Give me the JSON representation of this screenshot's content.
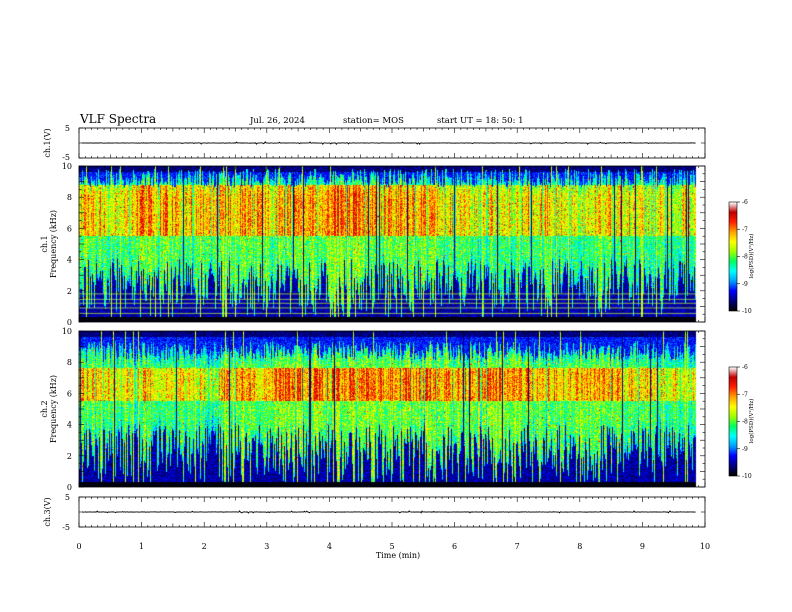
{
  "header": {
    "title": "VLF Spectra",
    "date": "Jul. 26, 2024",
    "station": "station= MOS",
    "start": "start UT =  18: 50: 1"
  },
  "chart_data": {
    "type": "heatmap",
    "xlabel": "Time (min)",
    "xlim": [
      0,
      10
    ],
    "xticks": [
      "0",
      "1",
      "2",
      "3",
      "4",
      "5",
      "6",
      "7",
      "8",
      "9",
      "10"
    ],
    "data_end_min": 9.85,
    "panels": [
      {
        "kind": "waveform",
        "ylabel": "ch.1(V)",
        "ylim": [
          -5,
          5
        ],
        "yticks": [
          "5",
          "-5"
        ],
        "baseline_v": 0,
        "description_values": {
          "amplitude_v": 0.1
        }
      },
      {
        "kind": "spectrogram",
        "ylabel_line1": "ch.1",
        "ylabel_line2": "Frequency (kHz)",
        "ylim_khz": [
          0,
          10
        ],
        "yticks": [
          "0",
          "2",
          "4",
          "6",
          "8",
          "10"
        ],
        "emission_band_khz": [
          4,
          9
        ],
        "peak_band_khz": [
          5.5,
          8.8
        ],
        "narrowband_lines_khz": [
          0.55,
          0.9,
          1.2,
          1.45,
          1.8
        ],
        "colorbar": {
          "label": "log(PSD)(V²/Hz)",
          "range": [
            -10,
            -6
          ],
          "ticks": [
            "-6",
            "-7",
            "-8",
            "-9",
            "-10"
          ]
        }
      },
      {
        "kind": "spectrogram",
        "ylabel_line1": "ch.2",
        "ylabel_line2": "Frequency (kHz)",
        "ylim_khz": [
          0,
          10
        ],
        "yticks": [
          "0",
          "2",
          "4",
          "6",
          "8",
          "10"
        ],
        "emission_band_khz": [
          4,
          8.5
        ],
        "peak_band_khz": [
          5.5,
          7.6
        ],
        "narrowband_lines_khz": [],
        "colorbar": {
          "label": "log(PSD)(V²/Hz)",
          "range": [
            -10,
            -6
          ],
          "ticks": [
            "-6",
            "-7",
            "-8",
            "-9",
            "-10"
          ]
        }
      },
      {
        "kind": "waveform",
        "ylabel": "ch.3(V)",
        "ylim": [
          -5,
          5
        ],
        "yticks": [
          "5",
          "-5"
        ],
        "baseline_v": 0,
        "description_values": {
          "amplitude_v": 0.1
        }
      }
    ]
  },
  "colors": {
    "colormap": [
      "#000000",
      "#00007f",
      "#0000ff",
      "#00a0ff",
      "#00ffff",
      "#00ff60",
      "#a0ff00",
      "#ffff00",
      "#ffa000",
      "#ff2000",
      "#c00000",
      "#ffffff"
    ],
    "narrowband_lines": "#c8ff40"
  }
}
